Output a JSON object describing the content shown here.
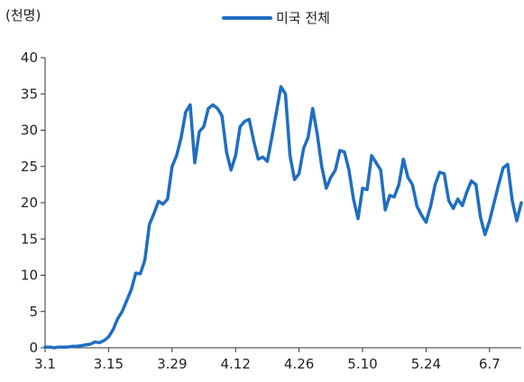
{
  "chart_data": {
    "type": "line",
    "unit_label": "(천명)",
    "ylim": [
      0,
      40
    ],
    "y_ticks": [
      "0",
      "5",
      "10",
      "15",
      "20",
      "25",
      "30",
      "35",
      "40"
    ],
    "x_tick_labels": [
      "3.1",
      "3.15",
      "3.29",
      "4.12",
      "4.26",
      "5.10",
      "5.24",
      "6.7"
    ],
    "x_tick_index": [
      0,
      14,
      28,
      42,
      56,
      70,
      84,
      98
    ],
    "grid": false,
    "legend_position": "top-center",
    "color": "#1f6ec1",
    "series": [
      {
        "name": "미국 전체",
        "values": [
          0.1,
          0.1,
          0,
          0.1,
          0.1,
          0.1,
          0.2,
          0.2,
          0.3,
          0.4,
          0.5,
          0.8,
          0.7,
          1.0,
          1.5,
          2.5,
          4.0,
          5.0,
          6.5,
          8.0,
          10.3,
          10.2,
          12.1,
          17.0,
          18.5,
          20.2,
          19.8,
          20.5,
          25.0,
          26.5,
          29.0,
          32.5,
          33.5,
          25.5,
          29.8,
          30.5,
          33.0,
          33.5,
          33.0,
          32.0,
          27.0,
          24.5,
          26.5,
          30.5,
          31.2,
          31.5,
          28.5,
          26.0,
          26.3,
          25.7,
          29.0,
          32.5,
          36.0,
          35.0,
          26.5,
          23.2,
          24.0,
          27.5,
          29.0,
          33.0,
          29.5,
          25.0,
          22.0,
          23.5,
          24.5,
          27.2,
          27.0,
          24.5,
          20.5,
          17.8,
          22.0,
          21.8,
          26.5,
          25.5,
          24.5,
          19.0,
          21.0,
          20.8,
          22.5,
          26.0,
          23.5,
          22.5,
          19.5,
          18.3,
          17.3,
          19.5,
          22.5,
          24.2,
          24.0,
          20.3,
          19.2,
          20.5,
          19.6,
          21.5,
          23.0,
          22.5,
          18.0,
          15.6,
          17.5,
          20.0,
          22.5,
          24.8,
          25.3,
          20.3,
          17.5,
          20.0
        ]
      }
    ]
  }
}
